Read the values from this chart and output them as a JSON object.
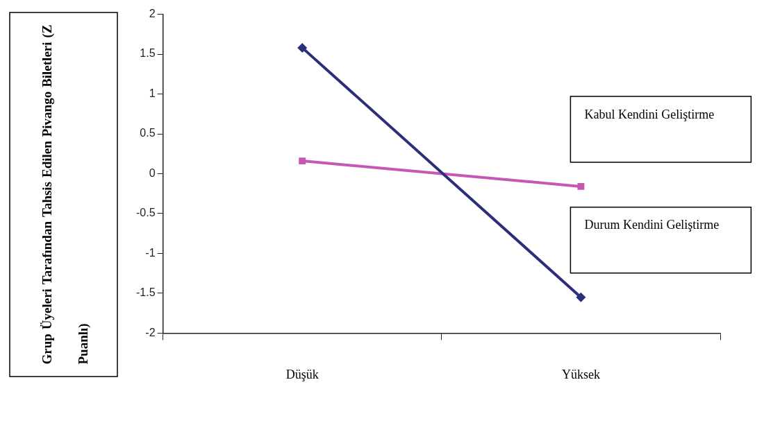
{
  "chart_data": {
    "type": "line",
    "ylabel": "Grup Üyeleri Tarafından Tahsis Edilen Pivango Biletleri (Z Puanlı)",
    "categories": [
      "Düşük",
      "Yüksek"
    ],
    "series": [
      {
        "name": "Durum Kendini Geliştirme",
        "color": "#2b2f7a",
        "values": [
          1.58,
          -1.55
        ],
        "marker": "diamond"
      },
      {
        "name": "Kabul Kendini Geliştirme",
        "color": "#c757b4",
        "values": [
          0.16,
          -0.16
        ],
        "marker": "square"
      }
    ],
    "ylim": [
      -2,
      2
    ],
    "yticks": [
      -2,
      -1.5,
      -1,
      -0.5,
      0,
      0.5,
      1,
      1.5,
      2
    ],
    "grid": false,
    "legend": false
  }
}
